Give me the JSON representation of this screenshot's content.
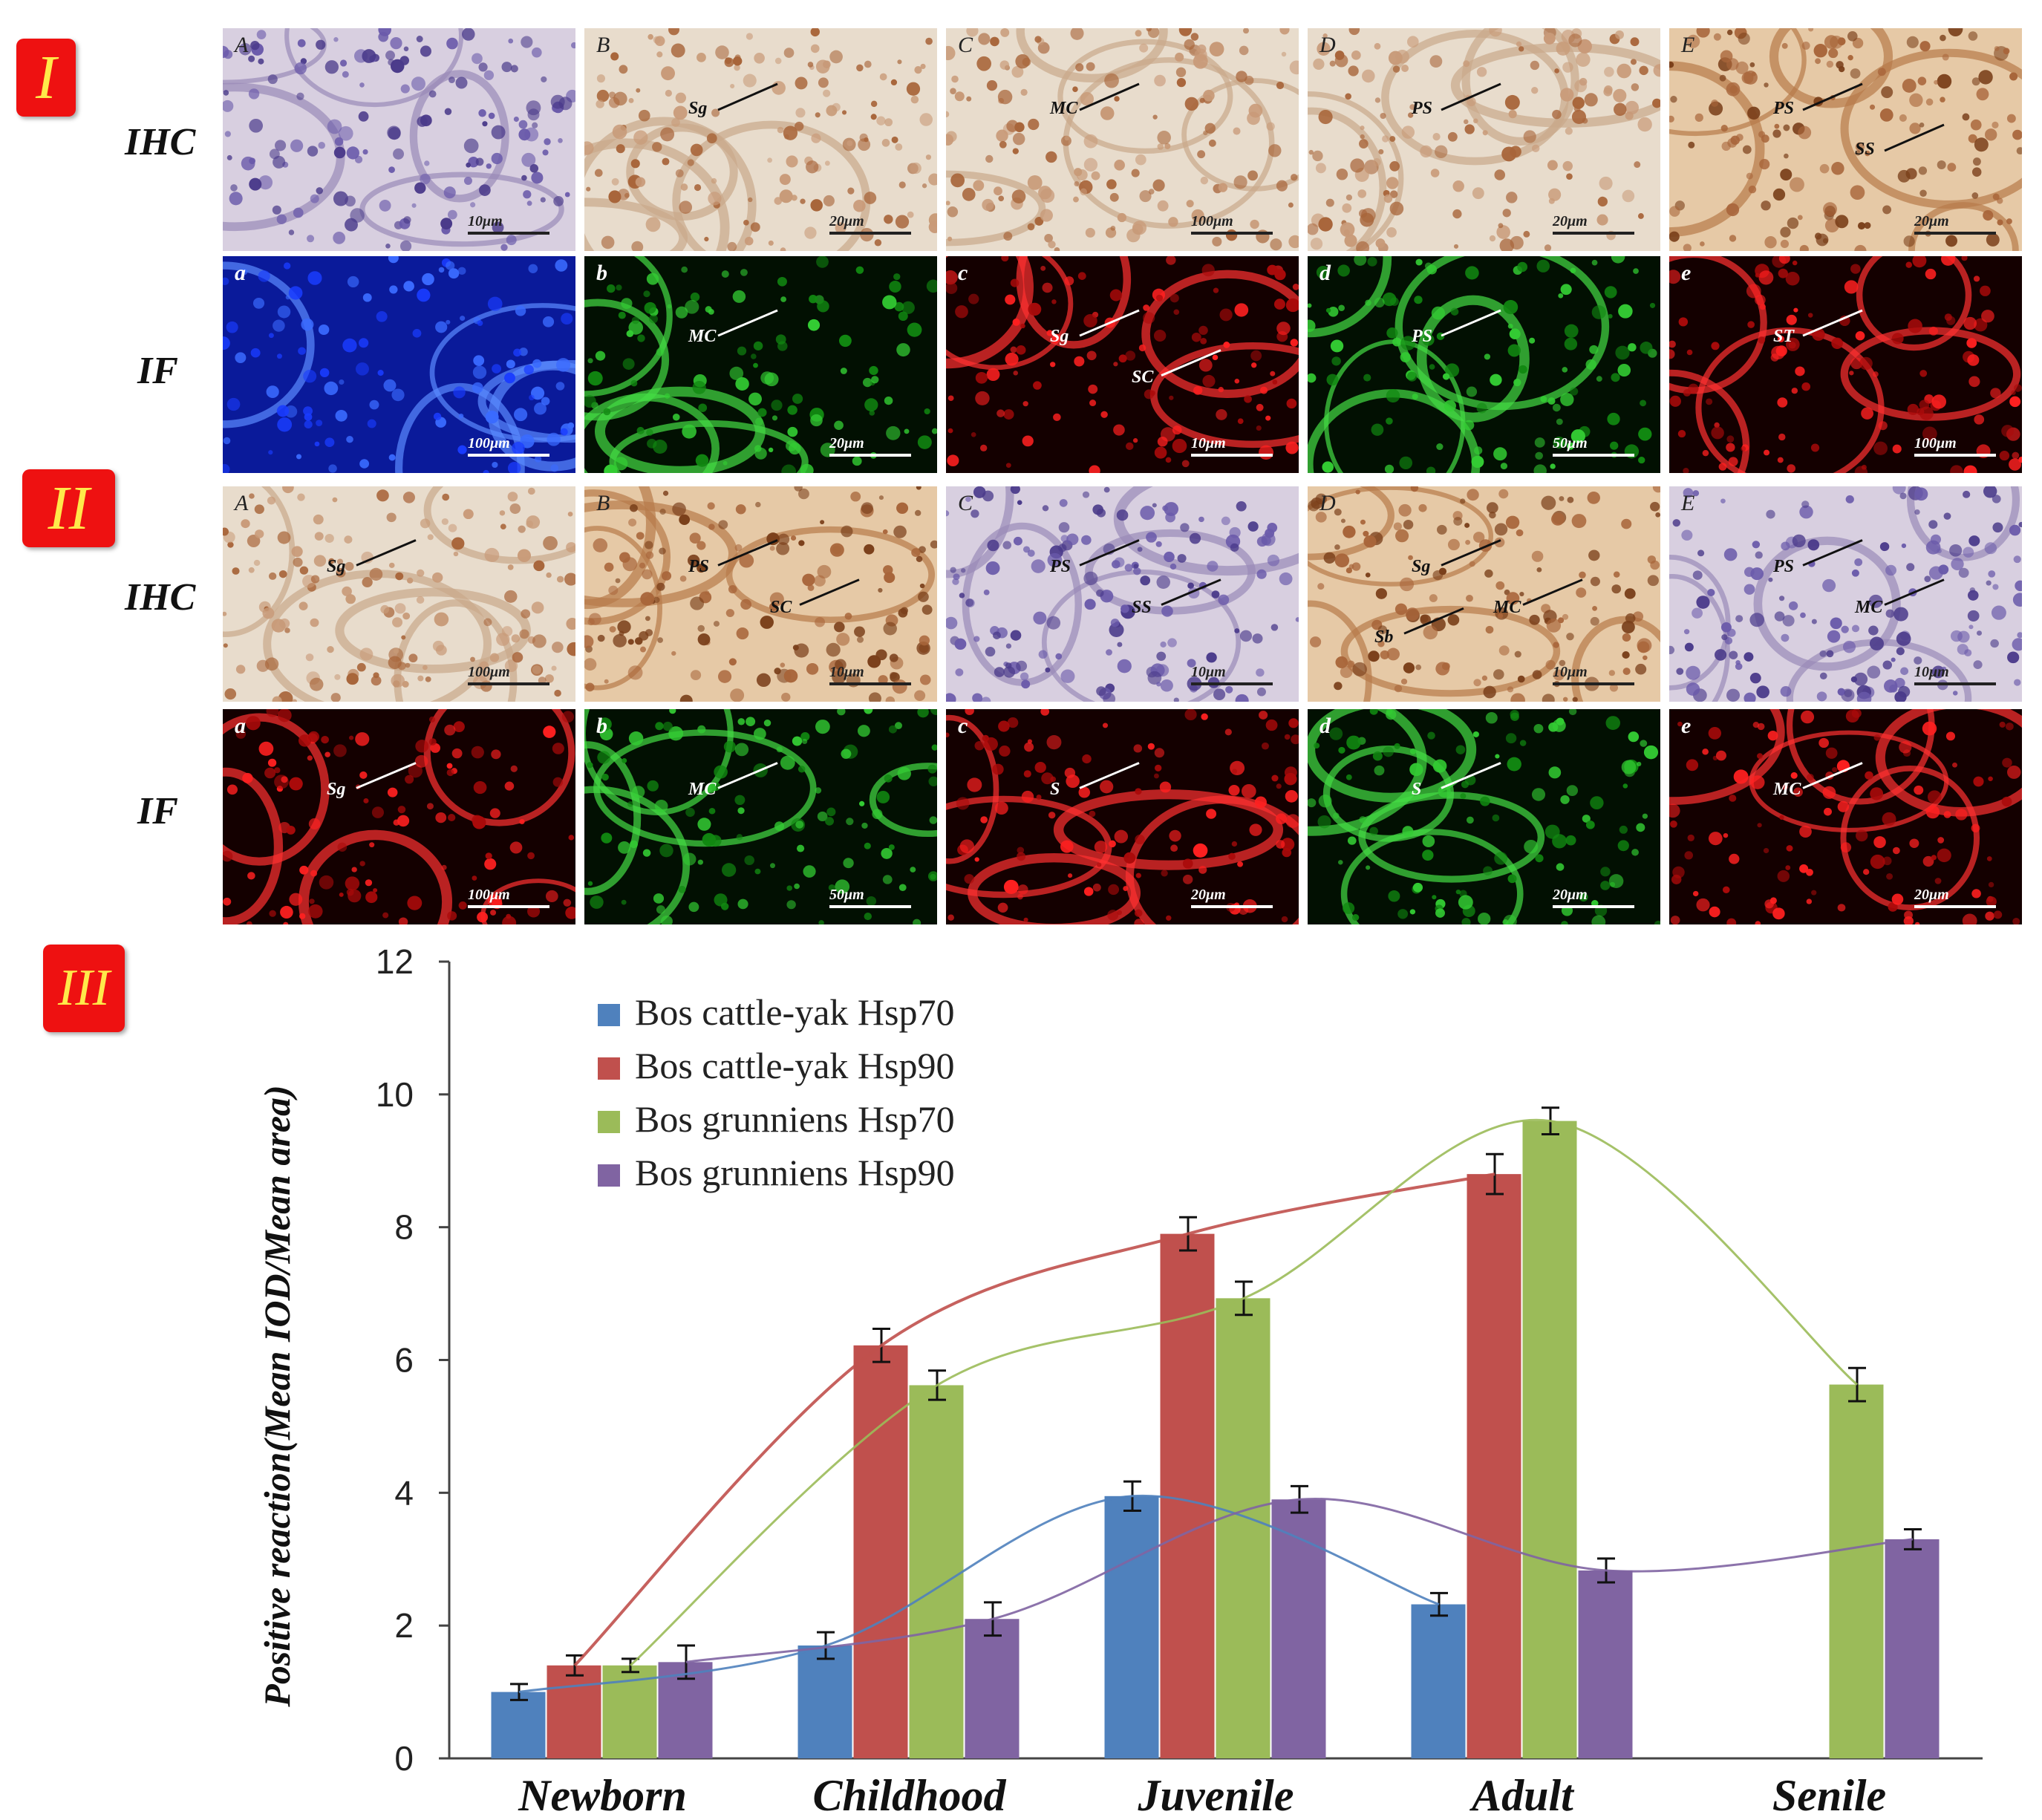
{
  "section_badges": {
    "I": "I",
    "II": "II",
    "III": "III"
  },
  "row_labels": {
    "ihc": "IHC",
    "if": "IF"
  },
  "colors": {
    "ihc_background": "#e8dccc",
    "ihc_stain": "#a8653a",
    "hematoxylin": "#4a3a8a",
    "if_blue": "#1a3cff",
    "if_green": "#33cc33",
    "if_red": "#ff2020",
    "badge_red": "#ee1111",
    "badge_text": "#ffe94a"
  },
  "panels_I": [
    {
      "label": "A",
      "type": "ihc_hema",
      "scale": "10μm",
      "annotations": []
    },
    {
      "label": "B",
      "type": "ihc_light",
      "scale": "20μm",
      "annotations": [
        "Sg"
      ]
    },
    {
      "label": "C",
      "type": "ihc_light",
      "scale": "100μm",
      "annotations": [
        "MC"
      ]
    },
    {
      "label": "D",
      "type": "ihc_light",
      "scale": "20μm",
      "annotations": [
        "PS"
      ]
    },
    {
      "label": "E",
      "type": "ihc_brown",
      "scale": "20μm",
      "annotations": [
        "PS",
        "SS"
      ]
    },
    {
      "label": "a",
      "type": "if_blue",
      "scale": "100μm",
      "annotations": []
    },
    {
      "label": "b",
      "type": "if_green",
      "scale": "20μm",
      "annotations": [
        "MC"
      ]
    },
    {
      "label": "c",
      "type": "if_red",
      "scale": "10μm",
      "annotations": [
        "Sg",
        "SC"
      ]
    },
    {
      "label": "d",
      "type": "if_green",
      "scale": "50μm",
      "annotations": [
        "PS"
      ]
    },
    {
      "label": "e",
      "type": "if_red",
      "scale": "100μm",
      "annotations": [
        "ST"
      ]
    }
  ],
  "panels_II": [
    {
      "label": "A",
      "type": "ihc_light",
      "scale": "100μm",
      "annotations": [
        "Sg"
      ]
    },
    {
      "label": "B",
      "type": "ihc_brown",
      "scale": "10μm",
      "annotations": [
        "PS",
        "SC"
      ]
    },
    {
      "label": "C",
      "type": "ihc_hema",
      "scale": "10μm",
      "annotations": [
        "PS",
        "SS"
      ]
    },
    {
      "label": "D",
      "type": "ihc_brown",
      "scale": "10μm",
      "annotations": [
        "Sg",
        "MC",
        "Sb"
      ]
    },
    {
      "label": "E",
      "type": "ihc_hema",
      "scale": "10μm",
      "annotations": [
        "PS",
        "MC"
      ]
    },
    {
      "label": "a",
      "type": "if_red",
      "scale": "100μm",
      "annotations": [
        "Sg"
      ]
    },
    {
      "label": "b",
      "type": "if_green",
      "scale": "50μm",
      "annotations": [
        "MC"
      ]
    },
    {
      "label": "c",
      "type": "if_red",
      "scale": "20μm",
      "annotations": [
        "S"
      ]
    },
    {
      "label": "d",
      "type": "if_green",
      "scale": "20μm",
      "annotations": [
        "S"
      ]
    },
    {
      "label": "e",
      "type": "if_red",
      "scale": "20μm",
      "annotations": [
        "MC"
      ]
    }
  ],
  "chart_data": {
    "type": "bar",
    "categories": [
      "Newborn",
      "Childhood",
      "Juvenile",
      "Adult",
      "Senile"
    ],
    "ylabel": "Positive reaction(Mean IOD/Mean area)",
    "ylim": [
      0,
      12
    ],
    "yticks": [
      0,
      2,
      4,
      6,
      8,
      10,
      12
    ],
    "legend_position": "top-left",
    "grid": false,
    "series": [
      {
        "name": "Bos cattle-yak Hsp70",
        "color": "#4f81bd",
        "values": [
          1.0,
          1.7,
          3.95,
          2.32,
          null
        ],
        "errors": [
          0.12,
          0.2,
          0.22,
          0.17,
          null
        ]
      },
      {
        "name": "Bos cattle-yak Hsp90",
        "color": "#c0504d",
        "values": [
          1.4,
          6.22,
          7.9,
          8.8,
          null
        ],
        "errors": [
          0.15,
          0.25,
          0.25,
          0.3,
          null
        ]
      },
      {
        "name": "Bos grunniens Hsp70",
        "color": "#9bbb59",
        "values": [
          1.4,
          5.62,
          6.93,
          9.6,
          5.63
        ],
        "errors": [
          0.1,
          0.22,
          0.25,
          0.2,
          0.25
        ]
      },
      {
        "name": "Bos grunniens Hsp90",
        "color": "#8064a2",
        "values": [
          1.45,
          2.1,
          3.9,
          2.83,
          3.3
        ],
        "errors": [
          0.25,
          0.25,
          0.2,
          0.18,
          0.15
        ]
      }
    ]
  }
}
